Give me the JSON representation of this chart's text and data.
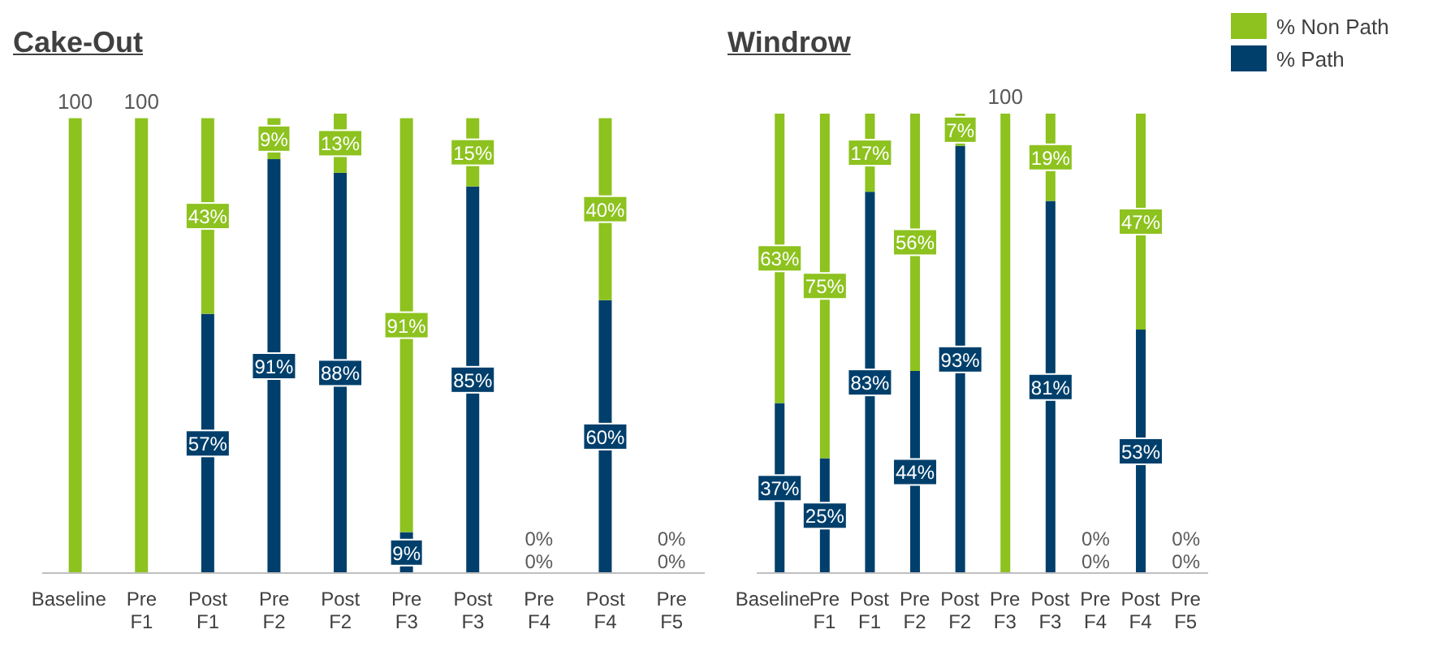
{
  "chart_data": [
    {
      "type": "bar",
      "title": "Cake-Out",
      "categories": [
        "Baseline",
        "Pre F1",
        "Post F1",
        "Pre F2",
        "Post F2",
        "Pre F3",
        "Post F3",
        "Pre F4",
        "Post F4",
        "Pre F5"
      ],
      "stacked": true,
      "tick_labels": "x",
      "legend": false,
      "series": [
        {
          "color": "#003f6b",
          "values": [
            0,
            0,
            57,
            91,
            88,
            9,
            85,
            0,
            60,
            0
          ],
          "value_labels": [
            null,
            null,
            "57%",
            "91%",
            "88%",
            "9%",
            "85%",
            "0%",
            "60%",
            "0%"
          ]
        },
        {
          "color": "#8dc21f",
          "values": [
            100,
            100,
            43,
            9,
            13,
            91,
            15,
            0,
            40,
            0
          ],
          "value_labels": [
            null,
            null,
            "43%",
            "9%",
            "13%",
            "91%",
            "15%",
            "0%",
            "40%",
            "0%"
          ]
        }
      ],
      "totals": [
        "100",
        "100",
        null,
        null,
        null,
        null,
        null,
        null,
        null,
        null
      ]
    },
    {
      "type": "bar",
      "title": "Windrow",
      "categories": [
        "Baseline",
        "Pre F1",
        "Post F1",
        "Pre F2",
        "Post F2",
        "Pre F3",
        "Post F3",
        "Pre F4",
        "Post F4",
        "Pre F5"
      ],
      "stacked": true,
      "tick_labels": "x",
      "legend": "top right",
      "series": [
        {
          "name": "% Path",
          "color": "#003f6b",
          "values": [
            37,
            25,
            83,
            44,
            93,
            0,
            81,
            0,
            53,
            0
          ],
          "value_labels": [
            "37%",
            "25%",
            "83%",
            "44%",
            "93%",
            null,
            "81%",
            "0%",
            "53%",
            "0%"
          ]
        },
        {
          "name": "% Non Path",
          "color": "#8dc21f",
          "values": [
            63,
            75,
            17,
            56,
            7,
            100,
            19,
            0,
            47,
            0
          ],
          "value_labels": [
            "63%",
            "75%",
            "17%",
            "56%",
            "7%",
            null,
            "19%",
            "0%",
            "47%",
            "0%"
          ]
        }
      ],
      "totals": [
        null,
        null,
        null,
        null,
        null,
        "100",
        null,
        null,
        null,
        null
      ]
    }
  ]
}
